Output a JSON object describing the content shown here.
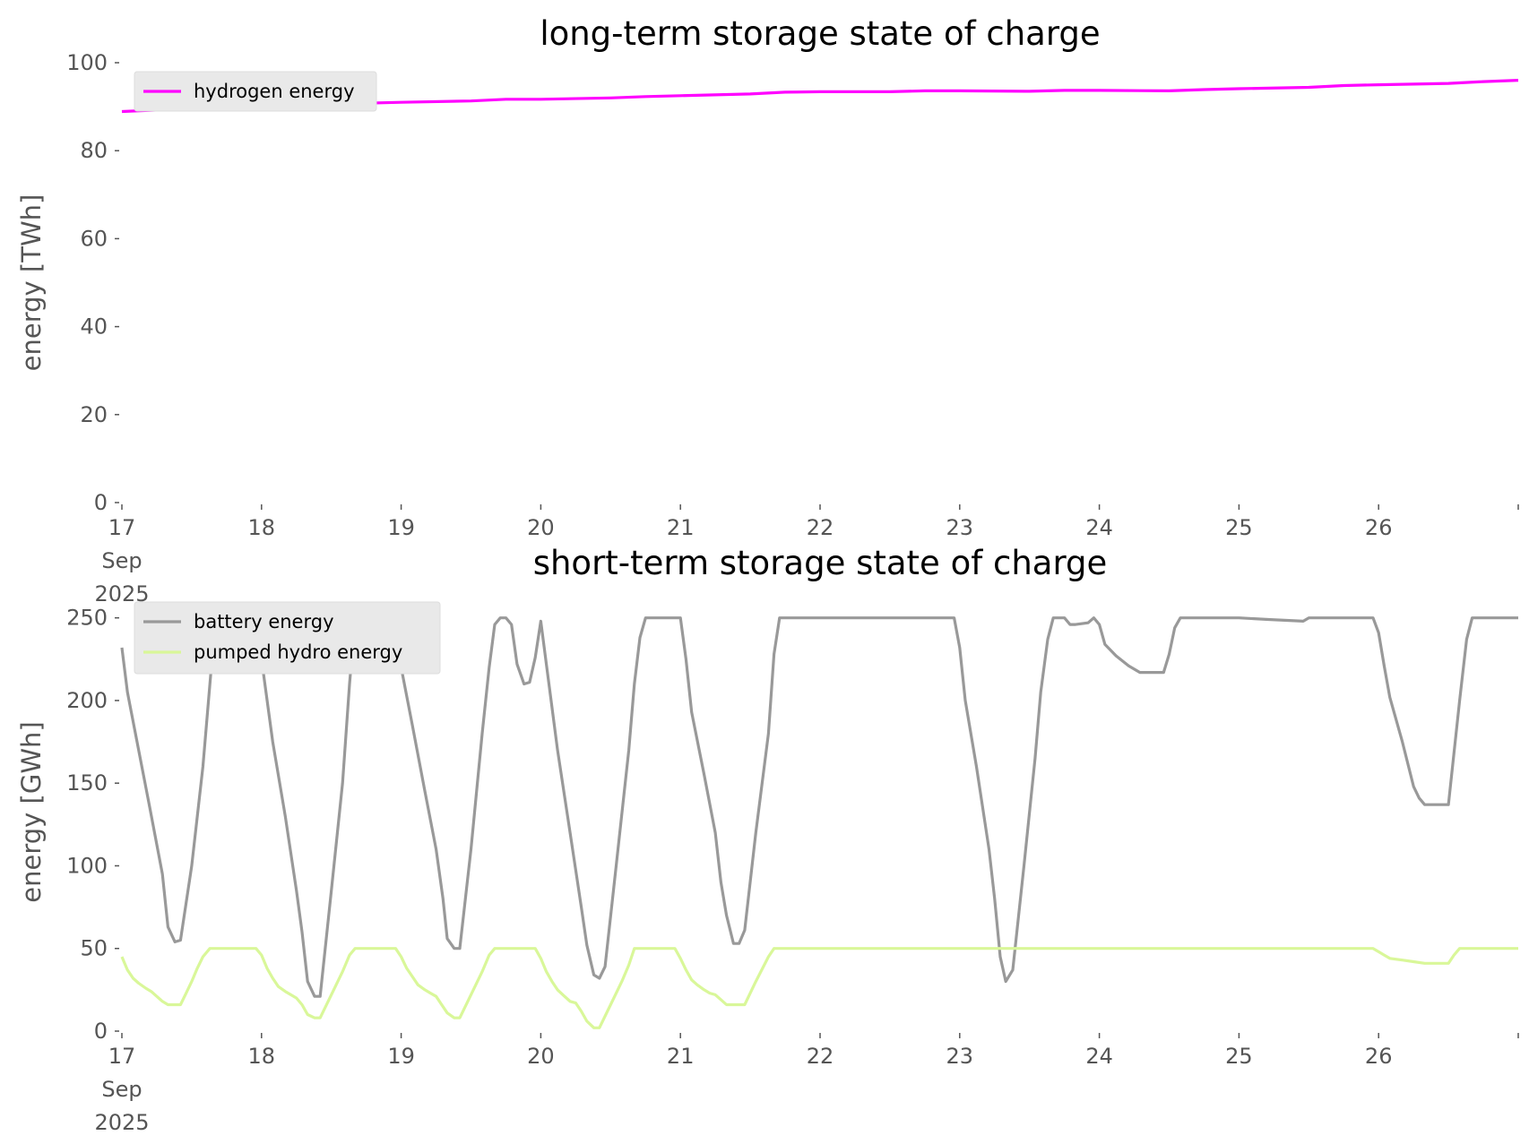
{
  "chart_data": [
    {
      "type": "line",
      "title": "long-term storage state of charge",
      "xlabel": "",
      "ylabel": "energy [TWh]",
      "ylim": [
        0,
        100
      ],
      "yticks": [
        "0",
        "20",
        "40",
        "60",
        "80",
        "100"
      ],
      "xlim": [
        17,
        27
      ],
      "xticks": [
        {
          "value": 17,
          "lines": [
            "17",
            "Sep",
            "2025"
          ]
        },
        {
          "value": 18,
          "lines": [
            "18"
          ]
        },
        {
          "value": 19,
          "lines": [
            "19"
          ]
        },
        {
          "value": 20,
          "lines": [
            "20"
          ]
        },
        {
          "value": 21,
          "lines": [
            "21"
          ]
        },
        {
          "value": 22,
          "lines": [
            "22"
          ]
        },
        {
          "value": 23,
          "lines": [
            "23"
          ]
        },
        {
          "value": 24,
          "lines": [
            "24"
          ]
        },
        {
          "value": 25,
          "lines": [
            "25"
          ]
        },
        {
          "value": 26,
          "lines": [
            "26"
          ]
        }
      ],
      "grid": false,
      "legend": "top-left",
      "series": [
        {
          "name": "hydrogen energy",
          "color": "#ff00ff",
          "points": [
            [
              17.0,
              88.9
            ],
            [
              17.5,
              89.6
            ],
            [
              18.0,
              90.0
            ],
            [
              18.5,
              90.6
            ],
            [
              19.0,
              91.0
            ],
            [
              19.5,
              91.3
            ],
            [
              19.75,
              91.7
            ],
            [
              20.0,
              91.7
            ],
            [
              20.5,
              92.0
            ],
            [
              20.75,
              92.3
            ],
            [
              21.0,
              92.5
            ],
            [
              21.5,
              92.9
            ],
            [
              21.75,
              93.3
            ],
            [
              22.0,
              93.4
            ],
            [
              22.5,
              93.4
            ],
            [
              22.75,
              93.6
            ],
            [
              23.0,
              93.6
            ],
            [
              23.5,
              93.5
            ],
            [
              23.75,
              93.7
            ],
            [
              24.0,
              93.7
            ],
            [
              24.5,
              93.6
            ],
            [
              24.75,
              93.9
            ],
            [
              25.0,
              94.1
            ],
            [
              25.5,
              94.4
            ],
            [
              25.75,
              94.8
            ],
            [
              26.0,
              95.0
            ],
            [
              26.5,
              95.3
            ],
            [
              26.75,
              95.7
            ],
            [
              27.0,
              96.0
            ]
          ]
        }
      ]
    },
    {
      "type": "line",
      "title": "short-term storage state of charge",
      "xlabel": "",
      "ylabel": "energy [GWh]",
      "ylim": [
        0,
        265
      ],
      "yticks": [
        "0",
        "50",
        "100",
        "150",
        "200",
        "250"
      ],
      "xlim": [
        17,
        27
      ],
      "xticks": [
        {
          "value": 17,
          "lines": [
            "17",
            "Sep",
            "2025"
          ]
        },
        {
          "value": 18,
          "lines": [
            "18"
          ]
        },
        {
          "value": 19,
          "lines": [
            "19"
          ]
        },
        {
          "value": 20,
          "lines": [
            "20"
          ]
        },
        {
          "value": 21,
          "lines": [
            "21"
          ]
        },
        {
          "value": 22,
          "lines": [
            "22"
          ]
        },
        {
          "value": 23,
          "lines": [
            "23"
          ]
        },
        {
          "value": 24,
          "lines": [
            "24"
          ]
        },
        {
          "value": 25,
          "lines": [
            "25"
          ]
        },
        {
          "value": 26,
          "lines": [
            "26"
          ]
        }
      ],
      "grid": false,
      "legend": "top-left",
      "series": [
        {
          "name": "battery energy",
          "color": "#999999",
          "points": [
            [
              17.0,
              232
            ],
            [
              17.04,
              205
            ],
            [
              17.12,
              170
            ],
            [
              17.2,
              135
            ],
            [
              17.29,
              95
            ],
            [
              17.33,
              63
            ],
            [
              17.38,
              54
            ],
            [
              17.42,
              55
            ],
            [
              17.5,
              100
            ],
            [
              17.58,
              160
            ],
            [
              17.63,
              210
            ],
            [
              17.67,
              250
            ],
            [
              17.92,
              250
            ],
            [
              18.0,
              225
            ],
            [
              18.08,
              175
            ],
            [
              18.17,
              130
            ],
            [
              18.25,
              85
            ],
            [
              18.29,
              60
            ],
            [
              18.33,
              30
            ],
            [
              18.38,
              21
            ],
            [
              18.42,
              21
            ],
            [
              18.5,
              85
            ],
            [
              18.58,
              150
            ],
            [
              18.63,
              210
            ],
            [
              18.67,
              250
            ],
            [
              18.92,
              250
            ],
            [
              19.0,
              220
            ],
            [
              19.08,
              185
            ],
            [
              19.17,
              145
            ],
            [
              19.25,
              110
            ],
            [
              19.3,
              80
            ],
            [
              19.33,
              56
            ],
            [
              19.38,
              50
            ],
            [
              19.42,
              50
            ],
            [
              19.5,
              110
            ],
            [
              19.58,
              180
            ],
            [
              19.63,
              220
            ],
            [
              19.67,
              246
            ],
            [
              19.71,
              250
            ],
            [
              19.75,
              250
            ],
            [
              19.79,
              246
            ],
            [
              19.83,
              222
            ],
            [
              19.88,
              210
            ],
            [
              19.92,
              211
            ],
            [
              19.96,
              226
            ],
            [
              20.0,
              248
            ],
            [
              20.04,
              222
            ],
            [
              20.12,
              170
            ],
            [
              20.21,
              120
            ],
            [
              20.29,
              75
            ],
            [
              20.33,
              52
            ],
            [
              20.38,
              34
            ],
            [
              20.42,
              32
            ],
            [
              20.46,
              39
            ],
            [
              20.54,
              100
            ],
            [
              20.63,
              170
            ],
            [
              20.67,
              210
            ],
            [
              20.71,
              238
            ],
            [
              20.75,
              250
            ],
            [
              21.0,
              250
            ],
            [
              21.04,
              225
            ],
            [
              21.08,
              193
            ],
            [
              21.17,
              155
            ],
            [
              21.25,
              120
            ],
            [
              21.29,
              90
            ],
            [
              21.33,
              70
            ],
            [
              21.38,
              53
            ],
            [
              21.42,
              53
            ],
            [
              21.46,
              61
            ],
            [
              21.54,
              120
            ],
            [
              21.63,
              180
            ],
            [
              21.67,
              228
            ],
            [
              21.71,
              250
            ],
            [
              22.96,
              250
            ],
            [
              23.0,
              232
            ],
            [
              23.04,
              200
            ],
            [
              23.12,
              160
            ],
            [
              23.21,
              110
            ],
            [
              23.25,
              80
            ],
            [
              23.29,
              45
            ],
            [
              23.33,
              30
            ],
            [
              23.38,
              37
            ],
            [
              23.46,
              100
            ],
            [
              23.54,
              165
            ],
            [
              23.58,
              205
            ],
            [
              23.63,
              237
            ],
            [
              23.67,
              250
            ],
            [
              23.75,
              250
            ],
            [
              23.79,
              246
            ],
            [
              23.83,
              246
            ],
            [
              23.92,
              247
            ],
            [
              23.96,
              250
            ],
            [
              24.0,
              246
            ],
            [
              24.04,
              234
            ],
            [
              24.12,
              227
            ],
            [
              24.21,
              221
            ],
            [
              24.29,
              217
            ],
            [
              24.46,
              217
            ],
            [
              24.5,
              228
            ],
            [
              24.54,
              244
            ],
            [
              24.58,
              250
            ],
            [
              25.0,
              250
            ],
            [
              25.21,
              249
            ],
            [
              25.46,
              248
            ],
            [
              25.5,
              250
            ],
            [
              25.96,
              250
            ],
            [
              26.0,
              241
            ],
            [
              26.04,
              221
            ],
            [
              26.08,
              202
            ],
            [
              26.17,
              175
            ],
            [
              26.25,
              148
            ],
            [
              26.29,
              141
            ],
            [
              26.33,
              137
            ],
            [
              26.5,
              137
            ],
            [
              26.58,
              200
            ],
            [
              26.63,
              237
            ],
            [
              26.67,
              250
            ],
            [
              27.0,
              250
            ]
          ]
        },
        {
          "name": "pumped hydro energy",
          "color": "#d9f799",
          "points": [
            [
              17.0,
              45
            ],
            [
              17.04,
              37
            ],
            [
              17.08,
              32
            ],
            [
              17.12,
              29
            ],
            [
              17.17,
              26
            ],
            [
              17.21,
              24
            ],
            [
              17.25,
              21
            ],
            [
              17.29,
              18
            ],
            [
              17.33,
              16
            ],
            [
              17.38,
              16
            ],
            [
              17.42,
              16
            ],
            [
              17.46,
              23
            ],
            [
              17.5,
              30
            ],
            [
              17.54,
              38
            ],
            [
              17.58,
              45
            ],
            [
              17.63,
              50
            ],
            [
              17.96,
              50
            ],
            [
              18.0,
              46
            ],
            [
              18.04,
              38
            ],
            [
              18.08,
              32
            ],
            [
              18.12,
              27
            ],
            [
              18.17,
              24
            ],
            [
              18.21,
              22
            ],
            [
              18.25,
              20
            ],
            [
              18.29,
              16
            ],
            [
              18.33,
              10
            ],
            [
              18.38,
              8
            ],
            [
              18.42,
              8
            ],
            [
              18.5,
              22
            ],
            [
              18.58,
              36
            ],
            [
              18.63,
              46
            ],
            [
              18.67,
              50
            ],
            [
              18.96,
              50
            ],
            [
              19.0,
              45
            ],
            [
              19.04,
              38
            ],
            [
              19.08,
              33
            ],
            [
              19.12,
              28
            ],
            [
              19.17,
              25
            ],
            [
              19.21,
              23
            ],
            [
              19.25,
              21
            ],
            [
              19.29,
              16
            ],
            [
              19.33,
              11
            ],
            [
              19.38,
              8
            ],
            [
              19.42,
              8
            ],
            [
              19.5,
              22
            ],
            [
              19.58,
              36
            ],
            [
              19.63,
              46
            ],
            [
              19.67,
              50
            ],
            [
              19.96,
              50
            ],
            [
              20.0,
              44
            ],
            [
              20.04,
              36
            ],
            [
              20.08,
              30
            ],
            [
              20.12,
              25
            ],
            [
              20.17,
              21
            ],
            [
              20.21,
              18
            ],
            [
              20.25,
              17
            ],
            [
              20.29,
              12
            ],
            [
              20.33,
              6
            ],
            [
              20.38,
              2
            ],
            [
              20.42,
              2
            ],
            [
              20.5,
              16
            ],
            [
              20.58,
              30
            ],
            [
              20.63,
              40
            ],
            [
              20.67,
              50
            ],
            [
              20.96,
              50
            ],
            [
              21.0,
              44
            ],
            [
              21.04,
              37
            ],
            [
              21.08,
              31
            ],
            [
              21.12,
              28
            ],
            [
              21.17,
              25
            ],
            [
              21.21,
              23
            ],
            [
              21.25,
              22
            ],
            [
              21.29,
              19
            ],
            [
              21.33,
              16
            ],
            [
              21.38,
              16
            ],
            [
              21.46,
              16
            ],
            [
              21.54,
              30
            ],
            [
              21.63,
              45
            ],
            [
              21.67,
              50
            ],
            [
              25.96,
              50
            ],
            [
              26.0,
              48
            ],
            [
              26.04,
              46
            ],
            [
              26.08,
              44
            ],
            [
              26.17,
              43
            ],
            [
              26.25,
              42
            ],
            [
              26.33,
              41
            ],
            [
              26.5,
              41
            ],
            [
              26.54,
              46
            ],
            [
              26.58,
              50
            ],
            [
              27.0,
              50
            ]
          ]
        }
      ]
    }
  ]
}
